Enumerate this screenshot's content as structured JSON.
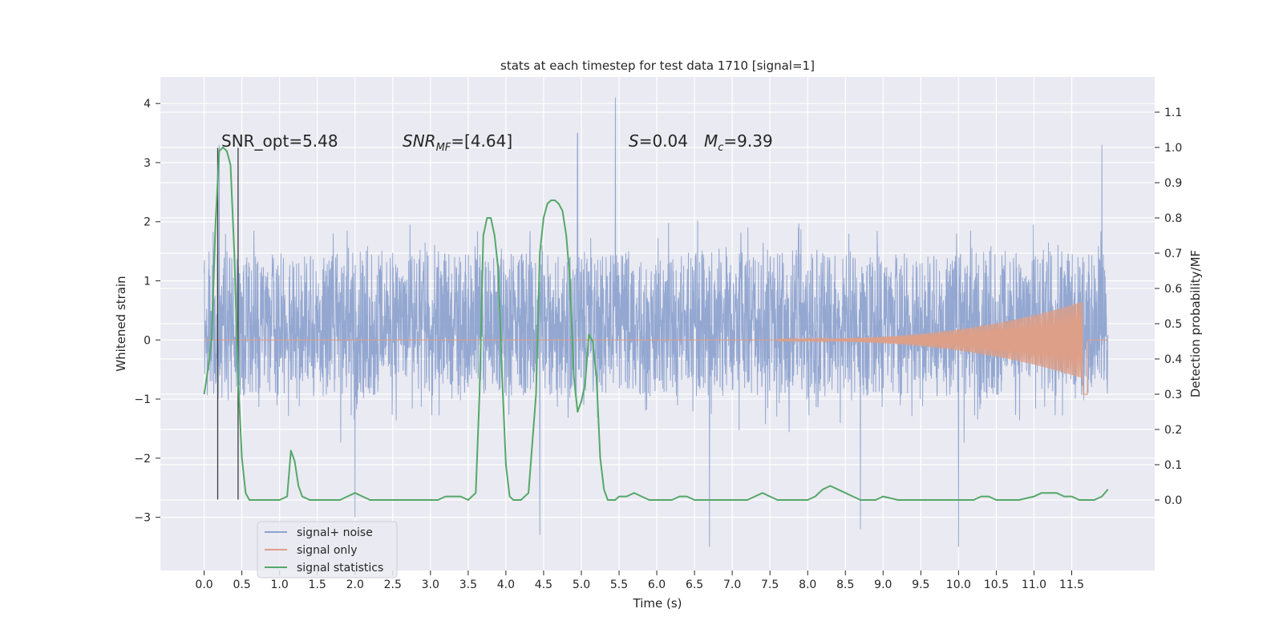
{
  "chart_data": {
    "type": "line",
    "title": "stats at each timestep for test data 1710 [signal=1]",
    "xlabel": "Time (s)",
    "ylabel": "Whitened strain",
    "y2label": "Detection probability/MF",
    "xlim": [
      -0.58,
      12.6
    ],
    "ylim": [
      -3.9,
      4.45
    ],
    "y2lim": [
      -0.2,
      1.2
    ],
    "x_ticks": [
      "0.0",
      "0.5",
      "1.0",
      "1.5",
      "2.0",
      "2.5",
      "3.0",
      "3.5",
      "4.0",
      "4.5",
      "5.0",
      "5.5",
      "6.0",
      "6.5",
      "7.0",
      "7.5",
      "8.0",
      "8.5",
      "9.0",
      "9.5",
      "10.0",
      "10.5",
      "11.0",
      "11.5"
    ],
    "y_ticks": [
      "4",
      "3",
      "2",
      "1",
      "0",
      "−1",
      "−2",
      "−3"
    ],
    "y2_ticks": [
      "1.1",
      "1.0",
      "0.9",
      "0.8",
      "0.7",
      "0.6",
      "0.5",
      "0.4",
      "0.3",
      "0.2",
      "0.1",
      "0.0"
    ],
    "grid": true,
    "legend_position": "lower-left",
    "legend": [
      {
        "label": "signal+ noise",
        "color": "#8ea3cf"
      },
      {
        "label": "signal only",
        "color": "#dd9f88"
      },
      {
        "label": "signal statistics",
        "color": "#55a868"
      }
    ],
    "annotations": {
      "snr_opt": "SNR_opt=5.48",
      "snr_mf_main": "SNR",
      "snr_mf_sub": "MF",
      "snr_mf_val": "=[4.64]",
      "s_main": "S",
      "s_val": "=0.04",
      "mc_main": "M",
      "mc_sub": "c",
      "mc_val": "=9.39"
    },
    "vertical_lines_s": [
      0.18,
      0.45
    ],
    "signal_statistics": {
      "x": [
        0.0,
        0.05,
        0.1,
        0.15,
        0.2,
        0.25,
        0.3,
        0.35,
        0.4,
        0.45,
        0.5,
        0.55,
        0.6,
        0.65,
        0.7,
        0.8,
        0.9,
        1.0,
        1.1,
        1.15,
        1.2,
        1.25,
        1.3,
        1.4,
        1.5,
        1.6,
        1.7,
        1.8,
        1.9,
        2.0,
        2.1,
        2.2,
        2.3,
        2.4,
        2.5,
        2.6,
        2.7,
        2.8,
        2.9,
        3.0,
        3.1,
        3.2,
        3.3,
        3.4,
        3.5,
        3.6,
        3.65,
        3.7,
        3.75,
        3.8,
        3.85,
        3.9,
        3.95,
        4.0,
        4.05,
        4.1,
        4.15,
        4.2,
        4.3,
        4.4,
        4.45,
        4.5,
        4.55,
        4.6,
        4.65,
        4.7,
        4.75,
        4.8,
        4.85,
        4.9,
        4.95,
        5.0,
        5.05,
        5.1,
        5.15,
        5.2,
        5.25,
        5.3,
        5.35,
        5.4,
        5.45,
        5.5,
        5.6,
        5.7,
        5.8,
        5.9,
        6.0,
        6.1,
        6.2,
        6.3,
        6.4,
        6.5,
        6.6,
        6.8,
        7.0,
        7.2,
        7.3,
        7.4,
        7.5,
        7.6,
        7.7,
        7.8,
        8.0,
        8.1,
        8.2,
        8.3,
        8.4,
        8.5,
        8.6,
        8.7,
        8.8,
        8.9,
        9.0,
        9.2,
        9.4,
        9.6,
        9.8,
        10.0,
        10.2,
        10.3,
        10.4,
        10.5,
        10.6,
        10.8,
        11.0,
        11.1,
        11.2,
        11.3,
        11.4,
        11.5,
        11.6,
        11.7,
        11.8,
        11.9,
        11.98
      ],
      "y": [
        0.3,
        0.37,
        0.46,
        0.78,
        0.99,
        1.0,
        0.99,
        0.95,
        0.7,
        0.35,
        0.12,
        0.02,
        0.0,
        0.0,
        0.0,
        0.0,
        0.0,
        0.0,
        0.01,
        0.14,
        0.11,
        0.04,
        0.01,
        0.0,
        0.0,
        0.0,
        0.0,
        0.0,
        0.01,
        0.02,
        0.01,
        0.0,
        0.0,
        0.0,
        0.0,
        0.0,
        0.0,
        0.0,
        0.0,
        0.0,
        0.0,
        0.01,
        0.01,
        0.01,
        0.0,
        0.02,
        0.3,
        0.75,
        0.8,
        0.8,
        0.75,
        0.65,
        0.35,
        0.1,
        0.01,
        0.0,
        0.0,
        0.0,
        0.02,
        0.3,
        0.7,
        0.8,
        0.84,
        0.85,
        0.85,
        0.84,
        0.82,
        0.75,
        0.62,
        0.35,
        0.25,
        0.28,
        0.33,
        0.47,
        0.45,
        0.35,
        0.12,
        0.03,
        0.0,
        0.0,
        0.0,
        0.01,
        0.01,
        0.02,
        0.01,
        0.0,
        0.0,
        0.0,
        0.0,
        0.01,
        0.01,
        0.0,
        0.0,
        0.0,
        0.0,
        0.0,
        0.01,
        0.02,
        0.01,
        0.0,
        0.0,
        0.0,
        0.0,
        0.01,
        0.03,
        0.04,
        0.03,
        0.02,
        0.01,
        0.0,
        0.0,
        0.0,
        0.01,
        0.0,
        0.0,
        0.0,
        0.0,
        0.0,
        0.0,
        0.01,
        0.01,
        0.0,
        0.0,
        0.0,
        0.01,
        0.02,
        0.02,
        0.02,
        0.01,
        0.01,
        0.0,
        0.0,
        0.0,
        0.01,
        0.03
      ]
    },
    "signal_only": {
      "chirp_start_s": 7.6,
      "merger_time_s": 11.65,
      "peak_amplitude": 0.65,
      "post_merger_min": -0.92
    },
    "signal_plus_noise": {
      "x_range": [
        0.0,
        11.98
      ],
      "core_band": [
        -0.95,
        1.5
      ],
      "typical_range": [
        -2.3,
        2.5
      ],
      "notable_spikes": [
        {
          "x": 5.45,
          "y": 4.1
        },
        {
          "x": 0.2,
          "y": 3.3
        },
        {
          "x": 11.9,
          "y": 3.3
        },
        {
          "x": 4.95,
          "y": 3.5
        },
        {
          "x": 6.7,
          "y": -3.5
        },
        {
          "x": 10.0,
          "y": -3.5
        },
        {
          "x": 4.45,
          "y": -3.3
        },
        {
          "x": 8.7,
          "y": -3.2
        },
        {
          "x": 2.0,
          "y": -3.0
        }
      ]
    }
  }
}
